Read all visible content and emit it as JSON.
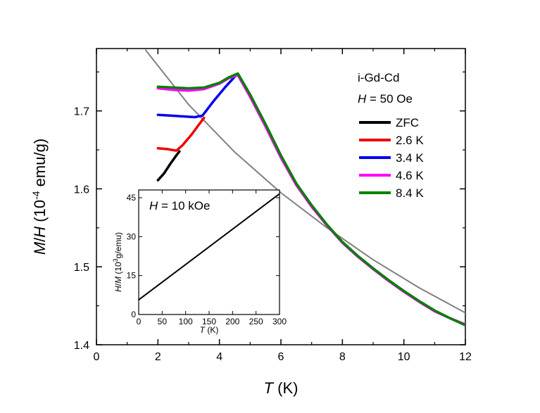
{
  "chart_data": [
    {
      "type": "line",
      "title": "",
      "xlabel": {
        "var": "T",
        "unit": " (K)"
      },
      "ylabel": {
        "var1": "M",
        "sep": "/",
        "var2": "H",
        "pre": " (10",
        "exp": "-4",
        "post": " emu/g)"
      },
      "xlim": [
        0,
        12
      ],
      "ylim": [
        1.4,
        1.78
      ],
      "xticks": [
        0,
        2,
        4,
        6,
        8,
        10,
        12
      ],
      "yticks": [
        1.4,
        1.5,
        1.6,
        1.7
      ],
      "ytick_labels": [
        "1.4",
        "1.5",
        "1.6",
        "1.7"
      ],
      "annotation_sample": "i-Gd-Cd",
      "annotation_field": {
        "var": "H",
        "rest": " = 50 Oe"
      },
      "legend_position": "top-right",
      "series": [
        {
          "name": "ZFC",
          "color": "#000000",
          "x": [
            2.0,
            2.2,
            2.4,
            2.6,
            2.7
          ],
          "y": [
            1.611,
            1.62,
            1.632,
            1.643,
            1.648
          ]
        },
        {
          "name": "2.6 K",
          "color": "#ee0000",
          "x": [
            2.0,
            2.3,
            2.6,
            2.8,
            3.1,
            3.4,
            3.5
          ],
          "y": [
            1.652,
            1.651,
            1.649,
            1.656,
            1.67,
            1.686,
            1.691
          ]
        },
        {
          "name": "3.4 K",
          "color": "#0000ee",
          "x": [
            2.0,
            2.4,
            2.8,
            3.2,
            3.45,
            3.8,
            4.2,
            4.5
          ],
          "y": [
            1.695,
            1.694,
            1.693,
            1.692,
            1.694,
            1.712,
            1.731,
            1.744
          ]
        },
        {
          "name": "4.6 K",
          "color": "#ff00ff",
          "x": [
            2.0,
            2.5,
            3.0,
            3.5,
            4.0,
            4.3,
            4.6,
            5.0,
            5.5,
            6.0,
            6.5,
            7.0,
            7.5,
            8.0,
            8.5,
            9.0,
            9.5,
            10.0,
            10.5,
            11.0,
            11.5,
            12.0
          ],
          "y": [
            1.729,
            1.727,
            1.726,
            1.728,
            1.735,
            1.742,
            1.746,
            1.718,
            1.68,
            1.64,
            1.605,
            1.577,
            1.553,
            1.531,
            1.513,
            1.497,
            1.482,
            1.468,
            1.455,
            1.443,
            1.434,
            1.426
          ]
        },
        {
          "name": "8.4 K",
          "color": "#008000",
          "x": [
            2.0,
            2.5,
            3.0,
            3.5,
            4.0,
            4.3,
            4.6,
            5.0,
            5.5,
            6.0,
            6.5,
            7.0,
            7.5,
            8.0,
            8.5,
            9.0,
            9.5,
            10.0,
            10.5,
            11.0,
            11.5,
            12.0
          ],
          "y": [
            1.731,
            1.73,
            1.729,
            1.73,
            1.736,
            1.743,
            1.748,
            1.721,
            1.683,
            1.643,
            1.607,
            1.579,
            1.554,
            1.532,
            1.514,
            1.498,
            1.483,
            1.469,
            1.456,
            1.444,
            1.434,
            1.425
          ]
        },
        {
          "name": "",
          "color": "#808080",
          "role": "Curie-Weiss fit",
          "x": [
            1.6,
            3.0,
            4.5,
            6.0,
            7.5,
            9.0,
            10.5,
            12.0
          ],
          "y": [
            1.778,
            1.708,
            1.647,
            1.595,
            1.55,
            1.509,
            1.473,
            1.441
          ]
        }
      ]
    },
    {
      "type": "line",
      "role": "inset",
      "annotation": {
        "var": "H",
        "rest": " = 10 kOe"
      },
      "xlabel": {
        "var": "T",
        "unit": " (K)"
      },
      "ylabel": {
        "var1": "H",
        "sep": "/",
        "var2": "M",
        "pre": " (10",
        "exp": "3",
        "post": "g/emu)"
      },
      "xlim": [
        0,
        300
      ],
      "ylim": [
        0,
        48
      ],
      "xticks": [
        0,
        50,
        100,
        150,
        200,
        250,
        300
      ],
      "yticks": [
        0,
        15,
        30,
        45
      ],
      "series": [
        {
          "name": "",
          "color": "#000000",
          "x": [
            0,
            2,
            300
          ],
          "y": [
            5.6,
            5.9,
            46.5
          ]
        }
      ]
    }
  ]
}
